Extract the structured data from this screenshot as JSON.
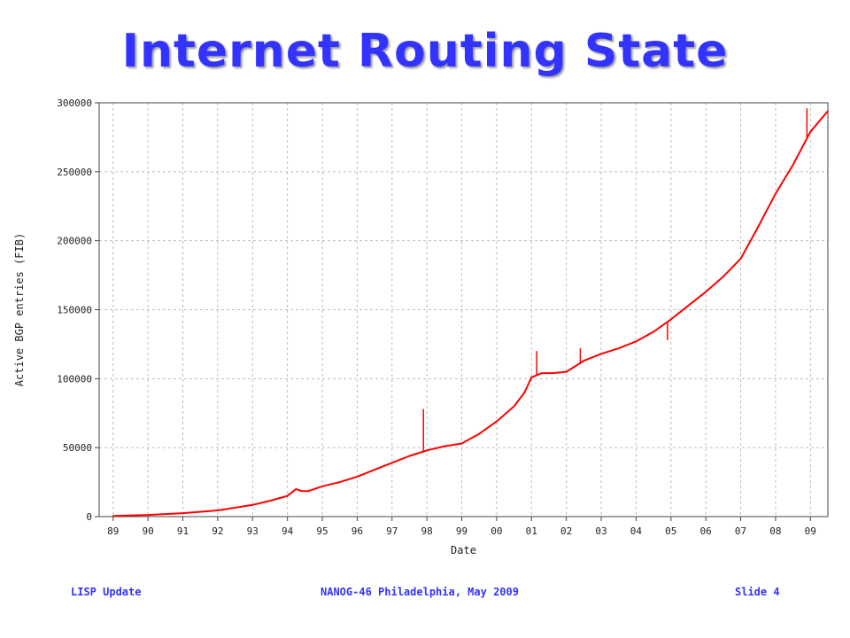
{
  "slide": {
    "title": "Internet Routing State",
    "footer_left": "LISP Update",
    "footer_center": "NANOG-46 Philadelphia, May 2009",
    "footer_right": "Slide 4"
  },
  "colors": {
    "title": "#3333ff",
    "series": "#ff0000",
    "grid": "#bdbdbd"
  },
  "chart_data": {
    "type": "line",
    "xlabel": "Date",
    "ylabel": "Active BGP entries (FIB)",
    "x_tick_labels": [
      "89",
      "90",
      "91",
      "92",
      "93",
      "94",
      "95",
      "96",
      "97",
      "98",
      "99",
      "00",
      "01",
      "02",
      "03",
      "04",
      "05",
      "06",
      "07",
      "08",
      "09"
    ],
    "x_tick_years": [
      1989,
      1990,
      1991,
      1992,
      1993,
      1994,
      1995,
      1996,
      1997,
      1998,
      1999,
      2000,
      2001,
      2002,
      2003,
      2004,
      2005,
      2006,
      2007,
      2008,
      2009
    ],
    "xlim": [
      1988.6,
      2009.5
    ],
    "y_ticks": [
      0,
      50000,
      100000,
      150000,
      200000,
      250000,
      300000
    ],
    "ylim": [
      0,
      300000
    ],
    "grid": true,
    "series": [
      {
        "color": "#ff0000",
        "x": [
          1989.0,
          1990.0,
          1991.0,
          1992.0,
          1993.0,
          1993.5,
          1994.0,
          1994.25,
          1994.4,
          1994.6,
          1995.0,
          1995.5,
          1996.0,
          1996.5,
          1997.0,
          1997.5,
          1998.0,
          1998.5,
          1999.0,
          1999.5,
          2000.0,
          2000.5,
          2000.8,
          2001.0,
          2001.3,
          2001.6,
          2002.0,
          2002.5,
          2003.0,
          2003.5,
          2004.0,
          2004.5,
          2005.0,
          2005.5,
          2006.0,
          2006.5,
          2007.0,
          2007.5,
          2008.0,
          2008.5,
          2009.0,
          2009.5
        ],
        "y": [
          500,
          1200,
          2500,
          4500,
          8500,
          11500,
          15000,
          20000,
          18500,
          18500,
          22000,
          25000,
          29000,
          34000,
          39000,
          44000,
          48000,
          51000,
          53000,
          60000,
          69000,
          80000,
          90000,
          101000,
          104000,
          104000,
          105000,
          113000,
          118000,
          122000,
          127000,
          134000,
          143000,
          153000,
          163000,
          174000,
          187000,
          210000,
          234000,
          255000,
          279000,
          294000
        ]
      }
    ],
    "spikes": [
      {
        "x": 1997.9,
        "y": 78000
      },
      {
        "x": 2001.15,
        "y": 120000
      },
      {
        "x": 2002.4,
        "y": 122000
      },
      {
        "x": 2004.9,
        "y": 128000
      },
      {
        "x": 2008.9,
        "y": 296000
      }
    ]
  }
}
